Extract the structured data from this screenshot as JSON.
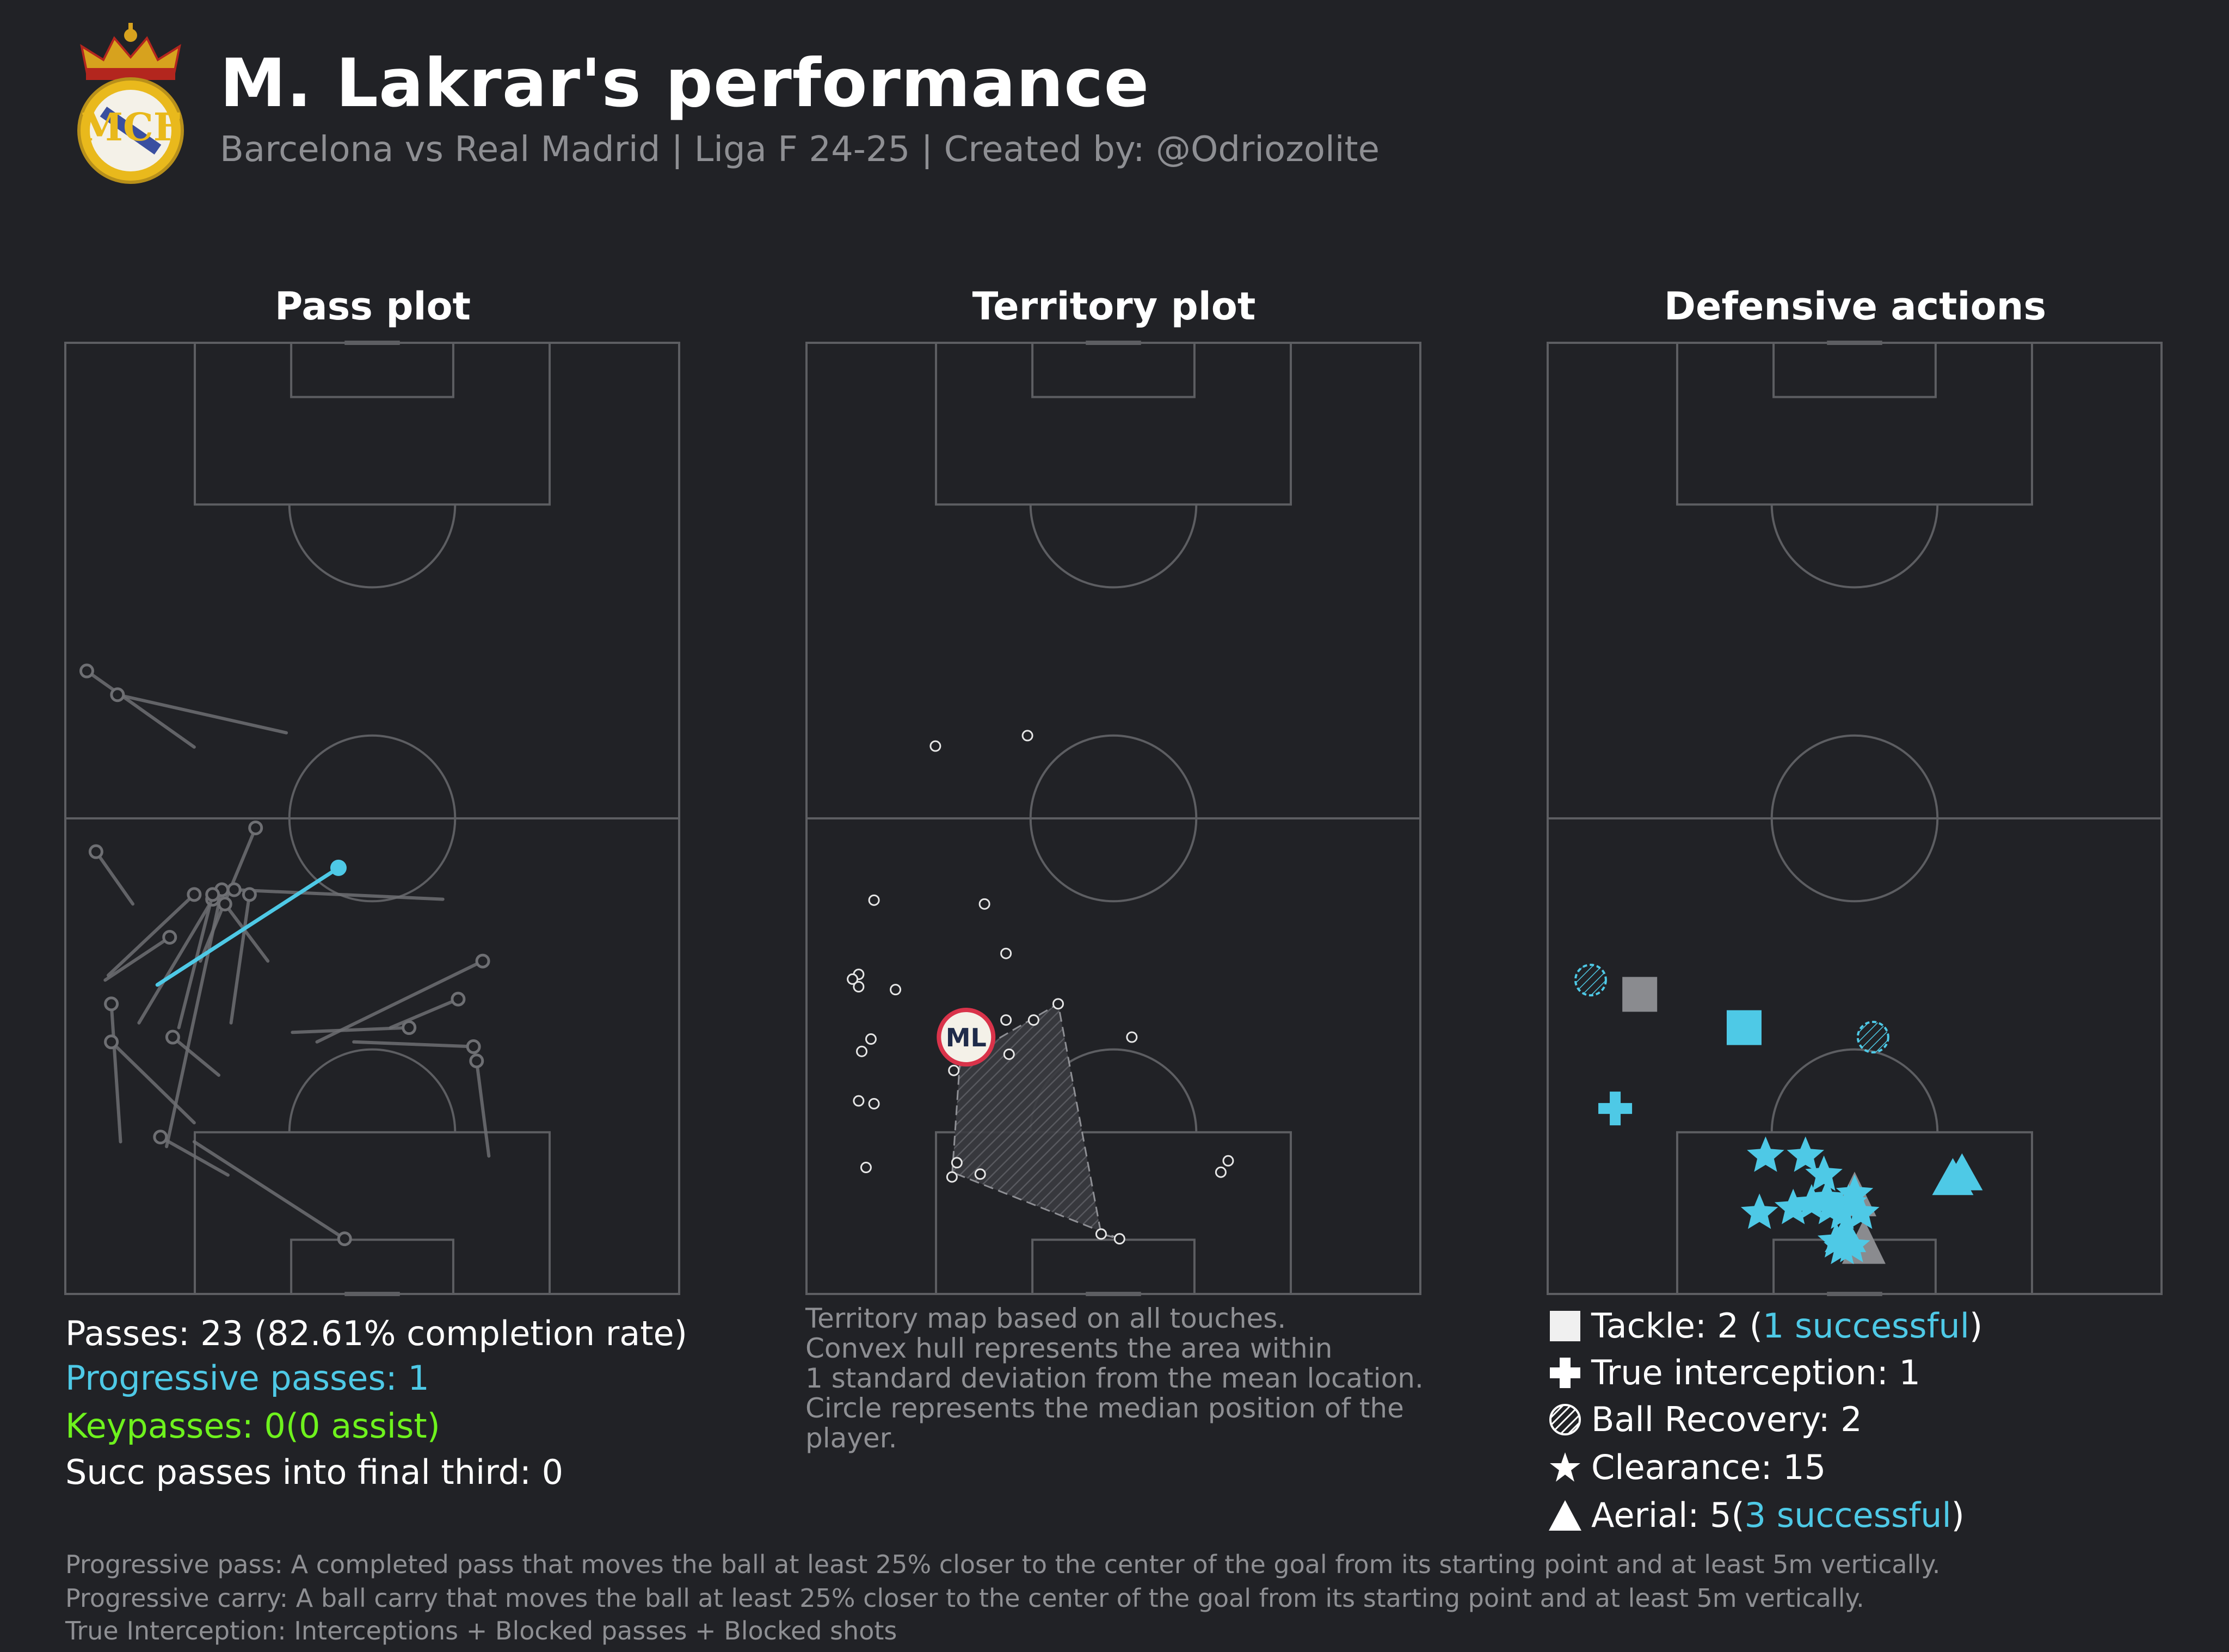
{
  "header": {
    "title": "M. Lakrar's performance",
    "subtitle": "Barcelona vs Real Madrid | Liga F 24-25 | Created by: @Odriozolite"
  },
  "colors": {
    "background": "#212226",
    "pitch_line": "#5d5e62",
    "accent_blue": "#4ec9e6",
    "accent_green": "#6ef21d",
    "muted_text": "#8e8f93",
    "median_ring": "#d9334a"
  },
  "panels": {
    "pass": {
      "title": "Pass plot"
    },
    "territory": {
      "title": "Territory plot"
    },
    "defensive": {
      "title": "Defensive actions"
    }
  },
  "pass_stats": {
    "passes": "Passes: 23 (82.61% completion rate)",
    "progressive": "Progressive passes: 1",
    "keypasses": "Keypasses: 0(0 assist)",
    "final_third": "Succ passes into final third: 0"
  },
  "territory_note": [
    "Territory map based on all touches.",
    "Convex hull represents the area within",
    "1 standard deviation from the mean location.",
    "Circle represents the median position of the",
    "player."
  ],
  "median_label": "ML",
  "defensive_legend": {
    "tackle_prefix": "Tackle: 2 (",
    "tackle_success": "1 successful",
    "tackle_suffix": ")",
    "interception": "True interception: 1",
    "recovery": "Ball Recovery: 2",
    "clearance": "Clearance: 15",
    "aerial_prefix": "Aerial: 5(",
    "aerial_success": "3 successful",
    "aerial_suffix": ")"
  },
  "footnotes": [
    "Progressive pass: A completed pass that moves the ball at least 25% closer to the center of the goal from its starting point and at least 5m vertically.",
    "Progressive carry: A ball carry that moves the ball at least 25% closer to the center of the goal from its starting point and at least 5m vertically.",
    "True Interception: Interceptions + Blocked passes + Blocked shots"
  ],
  "icons": [
    "real-madrid-crest-icon",
    "square-icon",
    "cross-icon",
    "hatched-circle-icon",
    "star-icon",
    "triangle-icon"
  ],
  "chart_data": [
    {
      "type": "scatter",
      "name": "pass_plot",
      "note": "pitch coordinates 0-100: x across the pitch from left touchline, y up the pitch from own goal line",
      "passes_progressive": [
        {
          "start": [
            44.5,
            44.8
          ],
          "end": [
            15.0,
            32.5
          ]
        }
      ],
      "passes_other": [
        {
          "start": [
            3.5,
            65.5
          ],
          "end": [
            21.0,
            57.5
          ]
        },
        {
          "start": [
            8.5,
            63.0
          ],
          "end": [
            36.0,
            59.0
          ]
        },
        {
          "start": [
            5.0,
            46.5
          ],
          "end": [
            11.0,
            41.0
          ]
        },
        {
          "start": [
            31.0,
            49.0
          ],
          "end": [
            22.0,
            35.0
          ]
        },
        {
          "start": [
            21.0,
            42.0
          ],
          "end": [
            7.0,
            33.5
          ]
        },
        {
          "start": [
            24.0,
            41.5
          ],
          "end": [
            12.0,
            28.5
          ]
        },
        {
          "start": [
            25.5,
            42.5
          ],
          "end": [
            16.5,
            15.5
          ]
        },
        {
          "start": [
            26.0,
            41.0
          ],
          "end": [
            33.0,
            35.0
          ]
        },
        {
          "start": [
            27.5,
            42.5
          ],
          "end": [
            61.5,
            41.5
          ]
        },
        {
          "start": [
            17.0,
            37.5
          ],
          "end": [
            6.5,
            33.0
          ]
        },
        {
          "start": [
            68.0,
            35.0
          ],
          "end": [
            41.0,
            26.5
          ]
        },
        {
          "start": [
            64.0,
            31.0
          ],
          "end": [
            53.0,
            28.0
          ]
        },
        {
          "start": [
            56.0,
            28.0
          ],
          "end": [
            37.0,
            27.5
          ]
        },
        {
          "start": [
            66.5,
            26.0
          ],
          "end": [
            47.0,
            26.5
          ]
        },
        {
          "start": [
            67.0,
            24.5
          ],
          "end": [
            69.0,
            14.5
          ]
        },
        {
          "start": [
            7.5,
            30.5
          ],
          "end": [
            9.0,
            16.0
          ]
        },
        {
          "start": [
            7.5,
            26.5
          ],
          "end": [
            21.0,
            18.0
          ]
        },
        {
          "start": [
            17.5,
            27.0
          ],
          "end": [
            25.0,
            23.0
          ]
        },
        {
          "start": [
            15.5,
            16.5
          ],
          "end": [
            26.5,
            12.5
          ]
        },
        {
          "start": [
            45.5,
            5.8
          ],
          "end": [
            21.0,
            16.0
          ]
        },
        {
          "start": [
            24.0,
            42.0
          ],
          "end": [
            18.5,
            28.0
          ]
        },
        {
          "start": [
            30.0,
            42.0
          ],
          "end": [
            27.0,
            28.5
          ]
        }
      ]
    },
    {
      "type": "scatter",
      "name": "territory_plot",
      "touches": [
        [
          21.0,
          57.6
        ],
        [
          36.0,
          58.7
        ],
        [
          11.0,
          41.4
        ],
        [
          29.0,
          41.0
        ],
        [
          32.5,
          35.8
        ],
        [
          8.5,
          33.6
        ],
        [
          7.5,
          33.1
        ],
        [
          8.5,
          32.3
        ],
        [
          14.5,
          32.0
        ],
        [
          41.0,
          30.5
        ],
        [
          32.5,
          28.8
        ],
        [
          37.0,
          28.8
        ],
        [
          10.5,
          26.8
        ],
        [
          9.0,
          25.5
        ],
        [
          25.0,
          25.5
        ],
        [
          33.0,
          25.2
        ],
        [
          53.0,
          27.0
        ],
        [
          8.5,
          20.3
        ],
        [
          11.0,
          20.0
        ],
        [
          24.0,
          23.5
        ],
        [
          9.7,
          13.3
        ],
        [
          24.5,
          13.8
        ],
        [
          28.3,
          12.6
        ],
        [
          23.7,
          12.3
        ],
        [
          48.0,
          6.3
        ],
        [
          51.0,
          5.8
        ],
        [
          67.5,
          12.8
        ],
        [
          68.7,
          14.0
        ]
      ],
      "hull": [
        [
          25.0,
          24.5
        ],
        [
          41.0,
          30.5
        ],
        [
          48.0,
          6.3
        ],
        [
          51.0,
          5.8
        ],
        [
          24.5,
          12.6
        ],
        [
          23.7,
          12.3
        ]
      ],
      "median": [
        26.0,
        27.0
      ]
    },
    {
      "type": "scatter",
      "name": "defensive_actions",
      "tackles": [
        {
          "pos": [
            15.0,
            31.5
          ],
          "successful": false
        },
        {
          "pos": [
            32.0,
            28.0
          ],
          "successful": true
        }
      ],
      "interceptions": [
        [
          11.0,
          19.5
        ]
      ],
      "recoveries": [
        [
          7.0,
          33.0
        ],
        [
          53.0,
          27.0
        ]
      ],
      "clearances": [
        [
          35.5,
          14.5
        ],
        [
          42.0,
          14.5
        ],
        [
          45.0,
          12.5
        ],
        [
          34.5,
          8.5
        ],
        [
          40.0,
          9.0
        ],
        [
          43.0,
          9.5
        ],
        [
          46.0,
          9.0
        ],
        [
          48.0,
          8.5
        ],
        [
          49.0,
          9.5
        ],
        [
          51.0,
          8.5
        ],
        [
          50.0,
          10.5
        ],
        [
          47.0,
          5.5
        ],
        [
          48.0,
          4.8
        ],
        [
          49.5,
          5.0
        ],
        [
          45.5,
          10.0
        ]
      ],
      "aerials": [
        {
          "pos": [
            67.5,
            12.5
          ],
          "successful": true
        },
        {
          "pos": [
            66.0,
            12.0
          ],
          "successful": true
        },
        {
          "pos": [
            48.5,
            6.0
          ],
          "successful": true
        },
        {
          "pos": [
            50.0,
            10.0
          ],
          "successful": false
        },
        {
          "pos": [
            51.5,
            5.0
          ],
          "successful": false
        }
      ]
    }
  ]
}
